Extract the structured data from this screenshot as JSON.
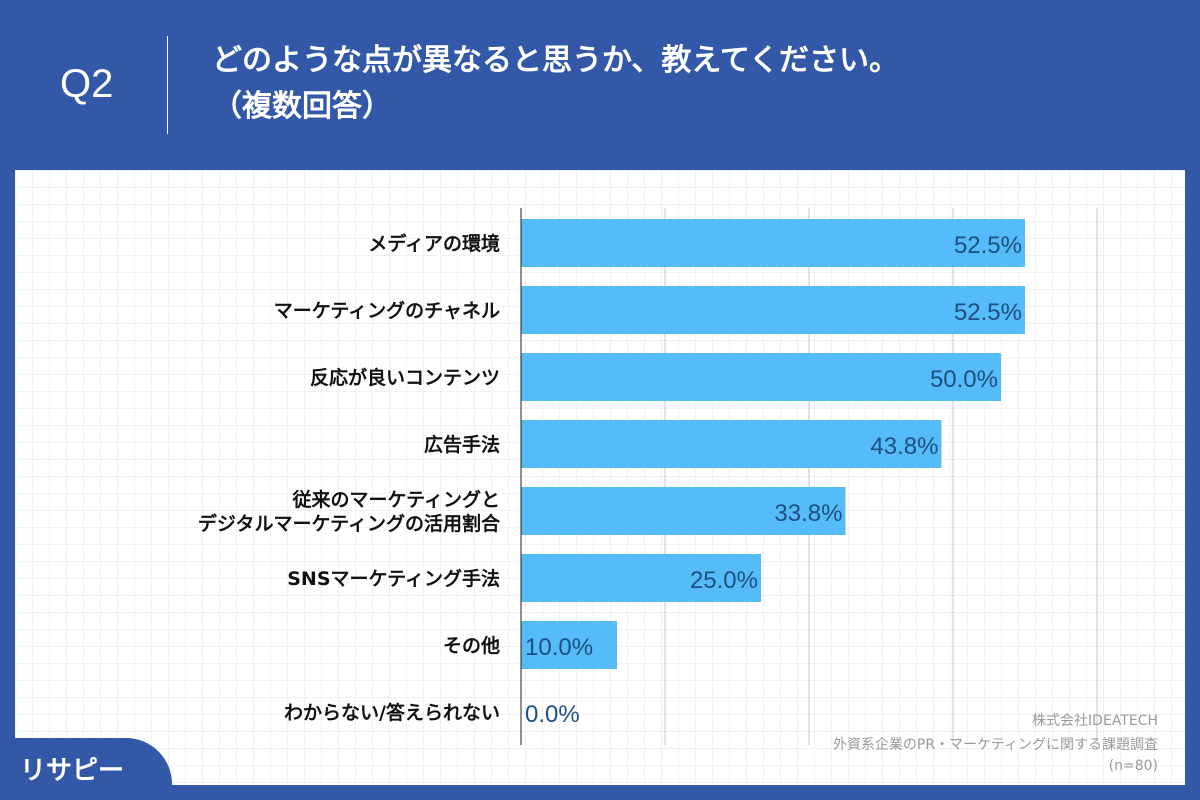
{
  "header": {
    "question_no": "Q2",
    "title_line1": "どのような点が異なると思うか、教えてください。",
    "title_line2": "（複数回答）"
  },
  "footer": {
    "company": "株式会社IDEATECH",
    "survey": "外資系企業のPR・マーケティングに関する課題調査",
    "sample": "(n=80)",
    "logo": "リサピー"
  },
  "colors": {
    "background": "#3358a8",
    "bar": "#56bcf9",
    "value_label": "#1d4f82"
  },
  "chart_data": {
    "type": "bar",
    "orientation": "horizontal",
    "categories": [
      "メディアの環境",
      "マーケティングのチャネル",
      "反応が良いコンテンツ",
      "広告手法",
      "従来のマーケティングと\nデジタルマーケティングの活用割合",
      "SNSマーケティング手法",
      "その他",
      "わからない/答えられない"
    ],
    "values": [
      52.5,
      52.5,
      50.0,
      43.8,
      33.8,
      25.0,
      10.0,
      0.0
    ],
    "value_labels": [
      "52.5%",
      "52.5%",
      "50.0%",
      "43.8%",
      "33.8%",
      "25.0%",
      "10.0%",
      "0.0%"
    ],
    "xlim": [
      0,
      60
    ],
    "gridlines": [
      15,
      30,
      45,
      60
    ],
    "grid": true
  }
}
